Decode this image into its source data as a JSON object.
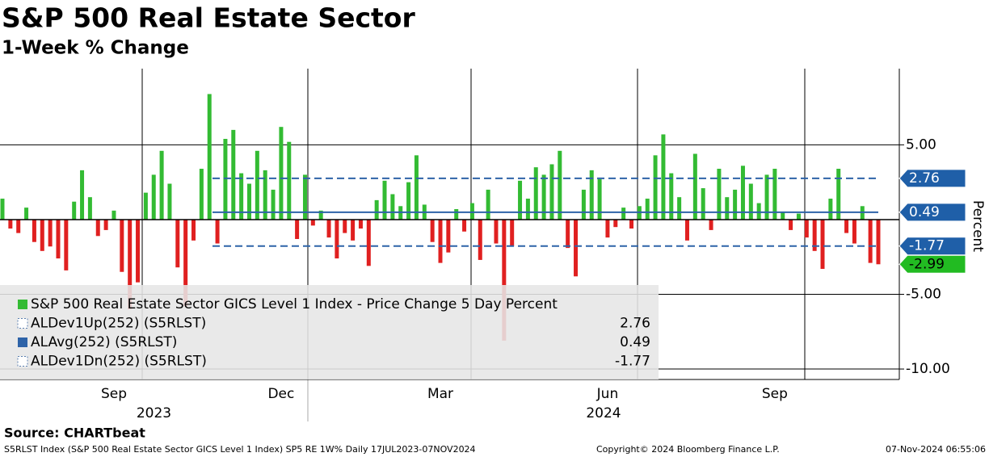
{
  "header": {
    "title": "S&P 500 Real Estate Sector",
    "subtitle": "1-Week % Change"
  },
  "chart_data": {
    "type": "bar",
    "categories": [
      null,
      null,
      null,
      null,
      null,
      null,
      null,
      null,
      null,
      null,
      null,
      null,
      null,
      null,
      "Sep",
      null,
      null,
      null,
      null,
      null,
      null,
      null,
      null,
      null,
      null,
      null,
      null,
      null,
      null,
      null,
      null,
      null,
      null,
      null,
      null,
      "Dec",
      null,
      null,
      null,
      null,
      null,
      null,
      null,
      null,
      null,
      null,
      null,
      null,
      null,
      null,
      null,
      null,
      null,
      null,
      null,
      "Mar",
      null,
      null,
      null,
      null,
      null,
      null,
      null,
      null,
      null,
      null,
      null,
      null,
      null,
      null,
      null,
      null,
      null,
      null,
      null,
      null,
      "Jun",
      null,
      null,
      null,
      null,
      null,
      null,
      null,
      null,
      null,
      null,
      null,
      null,
      null,
      null,
      null,
      null,
      null,
      null,
      null,
      null,
      "Sep",
      null,
      null,
      null,
      null,
      null,
      null,
      null,
      null,
      null,
      null,
      null,
      null,
      null
    ],
    "series": [
      {
        "name": "S&P 500 Real Estate Sector GICS Level 1 Index - Price Change 5 Day Percent",
        "color": "#33bb33",
        "negative_color": "#e02020",
        "values": [
          1.4,
          -0.6,
          -0.9,
          0.8,
          -1.5,
          -2.1,
          -1.8,
          -2.6,
          -3.4,
          1.2,
          3.3,
          1.5,
          -1.1,
          -0.7,
          0.6,
          -3.5,
          -6.0,
          -4.2,
          1.8,
          3.0,
          4.6,
          2.4,
          -3.2,
          -5.8,
          -1.4,
          3.4,
          8.4,
          -1.6,
          5.4,
          6.0,
          3.1,
          2.4,
          4.6,
          3.3,
          2.0,
          6.2,
          5.2,
          -1.3,
          3.0,
          -0.4,
          0.6,
          -1.2,
          -2.6,
          -0.9,
          -1.4,
          -0.6,
          -3.1,
          1.3,
          2.6,
          1.7,
          0.9,
          2.5,
          4.3,
          1.0,
          -1.5,
          -2.9,
          -2.2,
          0.7,
          -0.8,
          1.1,
          -2.7,
          2.0,
          -1.6,
          -8.1,
          -1.8,
          2.6,
          1.4,
          3.5,
          3.0,
          3.7,
          4.6,
          -1.9,
          -3.8,
          2.0,
          3.3,
          2.7,
          -1.2,
          -0.5,
          0.8,
          -0.6,
          0.9,
          1.4,
          4.3,
          5.7,
          3.1,
          1.5,
          -1.4,
          4.4,
          2.1,
          -0.7,
          3.4,
          1.5,
          2.0,
          3.6,
          2.4,
          1.1,
          3.0,
          3.4,
          0.5,
          -0.7,
          0.4,
          -1.2,
          -2.1,
          -3.3,
          1.4,
          3.4,
          -0.9,
          -1.6,
          0.9,
          -2.9,
          -2.99
        ]
      }
    ],
    "lines": [
      {
        "name": "ALDev1Up(252) (S5RLST)",
        "value": 2.76,
        "color": "#2e63a8",
        "dashed": true
      },
      {
        "name": "ALAvg(252) (S5RLST)",
        "value": 0.49,
        "color": "#2e63a8",
        "dashed": false
      },
      {
        "name": "ALDev1Dn(252) (S5RLST)",
        "value": -1.77,
        "color": "#2e63a8",
        "dashed": true
      }
    ],
    "ylim": [
      -10.7,
      10.1
    ],
    "yticks": [
      {
        "value": 5,
        "label": "5.00"
      },
      {
        "value": -5,
        "label": "-5.00"
      },
      {
        "value": -10,
        "label": "-10.00"
      }
    ],
    "ylabel": "Percent",
    "year_labels": [
      "2023",
      "2024"
    ],
    "grid": true
  },
  "footer": {
    "source": "Source: CHARTbeat",
    "info": "S5RLST Index (S&P 500 Real Estate Sector GICS Level 1 Index) SP5 RE 1W% Daily 17JUL2023-07NOV2024",
    "copyright": "Copyright© 2024 Bloomberg Finance L.P.",
    "timestamp": "07-Nov-2024 06:55:06"
  }
}
